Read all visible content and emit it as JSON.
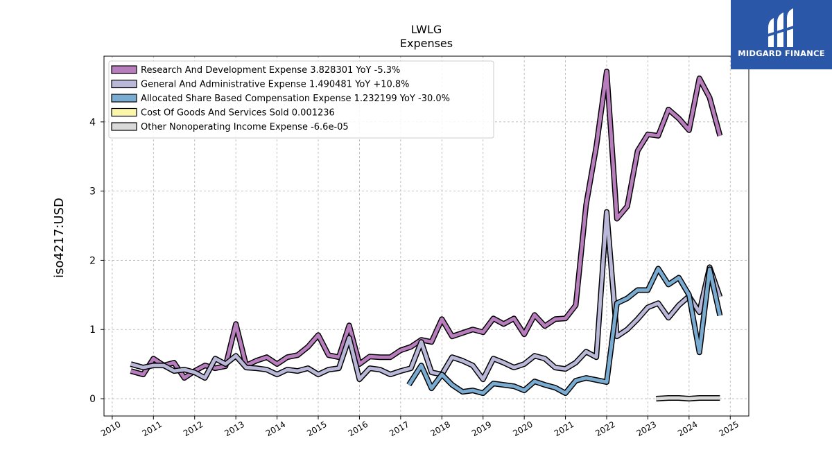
{
  "brand": {
    "name": "MIDGARD FINANCE",
    "accent": "#2b57a8"
  },
  "chart_data": {
    "type": "line",
    "title": "LWLG",
    "subtitle": "Expenses",
    "ylabel": "iso4217:USD",
    "xlabel": "",
    "xlim": [
      2009.8,
      2025.45
    ],
    "ylim": [
      -0.25,
      4.95
    ],
    "x_ticks": [
      2010,
      2011,
      2012,
      2013,
      2014,
      2015,
      2016,
      2017,
      2018,
      2019,
      2020,
      2021,
      2022,
      2023,
      2024,
      2025
    ],
    "y_ticks": [
      0,
      1,
      2,
      3,
      4
    ],
    "grid": true,
    "legend_position": "top-left",
    "series": [
      {
        "name": "Research And Development Expense",
        "legend": "Research And Development Expense  3.828301 YoY -5.3%",
        "color": "#b87dbd",
        "x": [
          2010.45,
          2010.75,
          2011.0,
          2011.25,
          2011.5,
          2011.75,
          2012.0,
          2012.25,
          2012.5,
          2012.75,
          2013.0,
          2013.25,
          2013.5,
          2013.75,
          2014.0,
          2014.25,
          2014.5,
          2014.75,
          2015.0,
          2015.25,
          2015.5,
          2015.75,
          2016.0,
          2016.25,
          2016.5,
          2016.75,
          2017.0,
          2017.25,
          2017.5,
          2017.75,
          2018.0,
          2018.25,
          2018.5,
          2018.75,
          2019.0,
          2019.25,
          2019.5,
          2019.75,
          2020.0,
          2020.25,
          2020.5,
          2020.75,
          2021.0,
          2021.25,
          2021.5,
          2021.75,
          2022.0,
          2022.25,
          2022.5,
          2022.75,
          2023.0,
          2023.25,
          2023.5,
          2023.75,
          2024.0,
          2024.25,
          2024.5,
          2024.75
        ],
        "y": [
          0.4,
          0.35,
          0.58,
          0.48,
          0.52,
          0.3,
          0.4,
          0.48,
          0.44,
          0.47,
          1.08,
          0.48,
          0.55,
          0.6,
          0.5,
          0.6,
          0.63,
          0.75,
          0.92,
          0.63,
          0.6,
          1.06,
          0.5,
          0.61,
          0.6,
          0.6,
          0.7,
          0.75,
          0.85,
          0.82,
          1.15,
          0.9,
          0.95,
          1.0,
          0.96,
          1.16,
          1.08,
          1.16,
          0.93,
          1.21,
          1.05,
          1.15,
          1.16,
          1.35,
          2.8,
          3.65,
          4.73,
          2.6,
          2.78,
          3.58,
          3.82,
          3.8,
          4.18,
          4.05,
          3.88,
          4.63,
          4.35,
          3.8
        ]
      },
      {
        "name": "General And Administrative Expense",
        "legend": "General And Administrative Expense  1.490481 YoY +10.8%",
        "color": "#b9b8d9",
        "x": [
          2010.45,
          2010.75,
          2011.0,
          2011.25,
          2011.5,
          2011.75,
          2012.0,
          2012.25,
          2012.5,
          2012.75,
          2013.0,
          2013.25,
          2013.5,
          2013.75,
          2014.0,
          2014.25,
          2014.5,
          2014.75,
          2015.0,
          2015.25,
          2015.5,
          2015.75,
          2016.0,
          2016.25,
          2016.5,
          2016.75,
          2017.0,
          2017.25,
          2017.5,
          2017.75,
          2018.0,
          2018.25,
          2018.5,
          2018.75,
          2019.0,
          2019.25,
          2019.5,
          2019.75,
          2020.0,
          2020.25,
          2020.5,
          2020.75,
          2021.0,
          2021.25,
          2021.5,
          2021.75,
          2022.0,
          2022.25,
          2022.5,
          2022.75,
          2023.0,
          2023.25,
          2023.5,
          2023.75,
          2024.0,
          2024.25,
          2024.5,
          2024.75
        ],
        "y": [
          0.5,
          0.45,
          0.48,
          0.48,
          0.4,
          0.42,
          0.38,
          0.3,
          0.58,
          0.5,
          0.62,
          0.45,
          0.44,
          0.42,
          0.35,
          0.42,
          0.4,
          0.44,
          0.35,
          0.42,
          0.44,
          0.88,
          0.28,
          0.44,
          0.42,
          0.35,
          0.4,
          0.44,
          0.82,
          0.38,
          0.35,
          0.6,
          0.55,
          0.48,
          0.28,
          0.58,
          0.52,
          0.45,
          0.5,
          0.62,
          0.58,
          0.45,
          0.43,
          0.52,
          0.68,
          0.6,
          2.7,
          0.9,
          1.0,
          1.15,
          1.32,
          1.38,
          1.17,
          1.35,
          1.48,
          1.25,
          1.9,
          1.47
        ]
      },
      {
        "name": "Allocated Share Based Compensation Expense",
        "legend": "Allocated Share Based Compensation Expense  1.232199 YoY -30.0%",
        "color": "#7aacd1",
        "x": [
          2017.2,
          2017.5,
          2017.75,
          2018.0,
          2018.25,
          2018.5,
          2018.75,
          2019.0,
          2019.25,
          2019.5,
          2019.75,
          2020.0,
          2020.25,
          2020.5,
          2020.75,
          2021.0,
          2021.25,
          2021.5,
          2021.75,
          2022.0,
          2022.25,
          2022.5,
          2022.75,
          2023.0,
          2023.25,
          2023.5,
          2023.75,
          2024.0,
          2024.25,
          2024.5,
          2024.75
        ],
        "y": [
          0.2,
          0.48,
          0.15,
          0.35,
          0.2,
          0.1,
          0.12,
          0.08,
          0.22,
          0.2,
          0.18,
          0.12,
          0.25,
          0.2,
          0.16,
          0.08,
          0.26,
          0.3,
          0.27,
          0.24,
          1.38,
          1.45,
          1.57,
          1.57,
          1.88,
          1.65,
          1.75,
          1.5,
          0.67,
          1.87,
          1.2
        ]
      },
      {
        "name": "Cost Of Goods And Services Sold",
        "legend": "Cost Of Goods And Services Sold  0.001236",
        "color": "#fbf7aa",
        "x": [],
        "y": []
      },
      {
        "name": "Other Nonoperating Income Expense",
        "legend": "Other Nonoperating Income Expense  -6.6e-05",
        "color": "#d9d9d9",
        "x": [
          2023.2,
          2023.5,
          2023.75,
          2024.0,
          2024.25,
          2024.5,
          2024.75
        ],
        "y": [
          0.0,
          0.01,
          0.01,
          0.0,
          0.01,
          0.01,
          0.01
        ]
      }
    ]
  }
}
